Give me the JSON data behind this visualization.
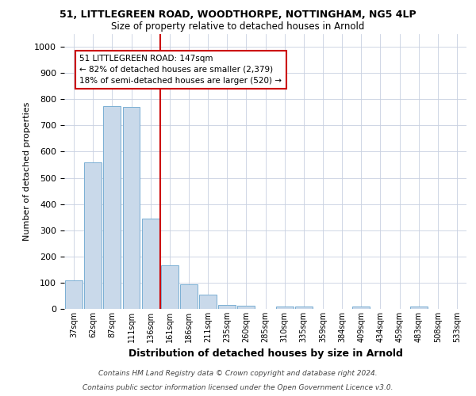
{
  "title_line1": "51, LITTLEGREEN ROAD, WOODTHORPE, NOTTINGHAM, NG5 4LP",
  "title_line2": "Size of property relative to detached houses in Arnold",
  "xlabel": "Distribution of detached houses by size in Arnold",
  "ylabel": "Number of detached properties",
  "categories": [
    "37sqm",
    "62sqm",
    "87sqm",
    "111sqm",
    "136sqm",
    "161sqm",
    "186sqm",
    "211sqm",
    "235sqm",
    "260sqm",
    "285sqm",
    "310sqm",
    "335sqm",
    "359sqm",
    "384sqm",
    "409sqm",
    "434sqm",
    "459sqm",
    "483sqm",
    "508sqm",
    "533sqm"
  ],
  "values": [
    110,
    560,
    775,
    770,
    345,
    165,
    95,
    53,
    15,
    12,
    0,
    10,
    8,
    0,
    0,
    8,
    0,
    0,
    8,
    0,
    0
  ],
  "bar_color": "#c9d9ea",
  "bar_edge_color": "#7aafd4",
  "property_line_x": 4.5,
  "annotation_line1": "51 LITTLEGREEN ROAD: 147sqm",
  "annotation_line2": "← 82% of detached houses are smaller (2,379)",
  "annotation_line3": "18% of semi-detached houses are larger (520) →",
  "annotation_box_color": "#ffffff",
  "annotation_border_color": "#cc0000",
  "vline_color": "#cc0000",
  "ylim": [
    0,
    1050
  ],
  "yticks": [
    0,
    100,
    200,
    300,
    400,
    500,
    600,
    700,
    800,
    900,
    1000
  ],
  "footer_line1": "Contains HM Land Registry data © Crown copyright and database right 2024.",
  "footer_line2": "Contains public sector information licensed under the Open Government Licence v3.0.",
  "background_color": "#ffffff",
  "grid_color": "#c8d0e0"
}
